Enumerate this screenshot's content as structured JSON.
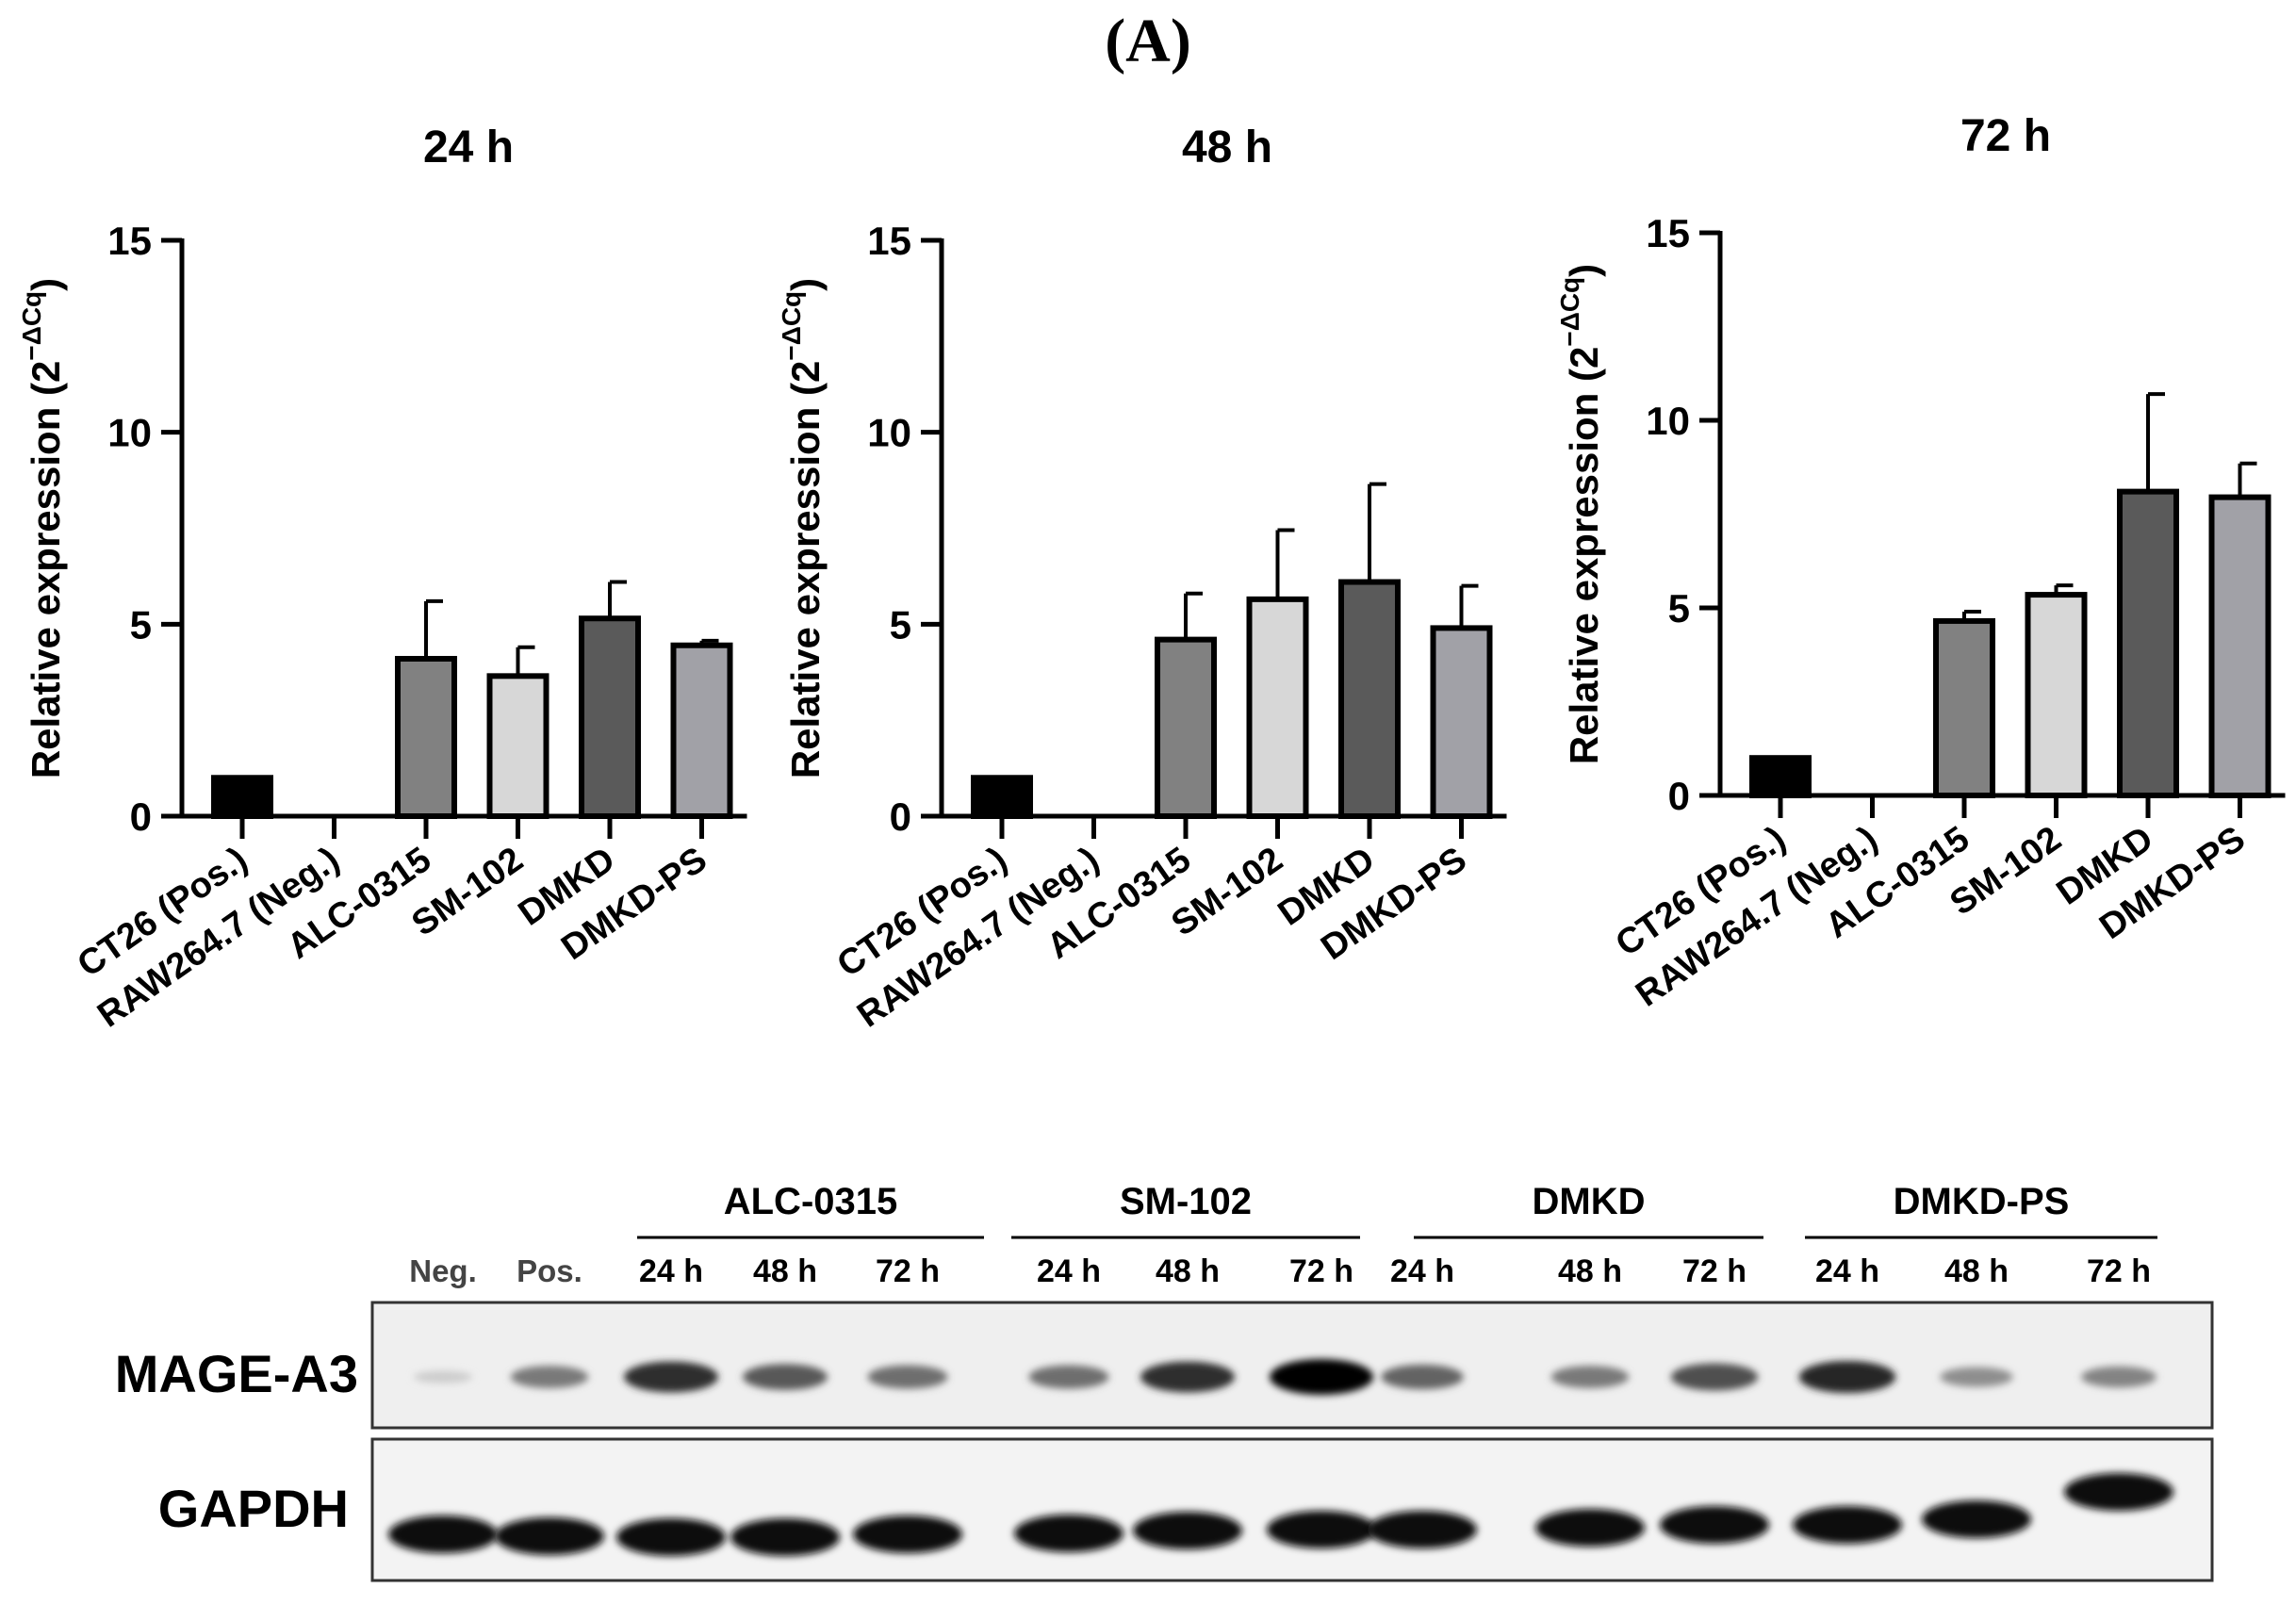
{
  "panel_label": "(A)",
  "chart_data": [
    {
      "type": "bar",
      "title": "24 h",
      "ylabel": "Relative expression (2",
      "ylabel_exp": "−ΔCq",
      "ylabel_close": ")",
      "ylim": [
        0,
        15
      ],
      "yticks": [
        0,
        5,
        10,
        15
      ],
      "categories": [
        "CT26 (Pos.)",
        "RAW264.7 (Neg.)",
        "ALC-0315",
        "SM-102",
        "DMKD",
        "DMKD-PS"
      ],
      "values": [
        1.0,
        0.0,
        4.1,
        3.65,
        5.15,
        4.45
      ],
      "errors": [
        0,
        0,
        1.5,
        0.75,
        0.95,
        0.12
      ],
      "colors": [
        "#000000",
        "#000000",
        "#818181",
        "#d7d7d7",
        "#5a5a5a",
        "#a1a1a7"
      ]
    },
    {
      "type": "bar",
      "title": "48 h",
      "ylabel": "Relative expression (2",
      "ylabel_exp": "−ΔCq",
      "ylabel_close": ")",
      "ylim": [
        0,
        15
      ],
      "yticks": [
        0,
        5,
        10,
        15
      ],
      "categories": [
        "CT26 (Pos.)",
        "RAW264.7 (Neg.)",
        "ALC-0315",
        "SM-102",
        "DMKD",
        "DMKD-PS"
      ],
      "values": [
        1.0,
        0.0,
        4.6,
        5.65,
        6.1,
        4.9
      ],
      "errors": [
        0,
        0,
        1.2,
        1.8,
        2.55,
        1.1
      ],
      "colors": [
        "#000000",
        "#000000",
        "#818181",
        "#d7d7d7",
        "#5a5a5a",
        "#a1a1a7"
      ]
    },
    {
      "type": "bar",
      "title": "72 h",
      "ylabel": "Relative expression (2",
      "ylabel_exp": "−ΔCq",
      "ylabel_close": ")",
      "ylim": [
        0,
        15
      ],
      "yticks": [
        0,
        5,
        10,
        15
      ],
      "categories": [
        "CT26 (Pos.)",
        "RAW264.7 (Neg.)",
        "ALC-0315",
        "SM-102",
        "DMKD",
        "DMKD-PS"
      ],
      "values": [
        1.0,
        0.0,
        4.65,
        5.35,
        8.1,
        7.95
      ],
      "errors": [
        0,
        0,
        0.25,
        0.25,
        2.6,
        0.9
      ],
      "colors": [
        "#000000",
        "#000000",
        "#818181",
        "#d7d7d7",
        "#5a5a5a",
        "#a1a1a7"
      ]
    }
  ],
  "blot": {
    "groups": [
      "ALC-0315",
      "SM-102",
      "DMKD",
      "DMKD-PS"
    ],
    "lanes": [
      "Neg.",
      "Pos.",
      "24 h",
      "48 h",
      "72 h",
      "24 h",
      "48 h",
      "72 h",
      "24 h",
      "48 h",
      "72 h",
      "24 h",
      "48 h",
      "72 h"
    ],
    "proteins": [
      "MAGE-A3",
      "GAPDH"
    ],
    "mage_a3_intensity": [
      0.05,
      0.45,
      0.8,
      0.6,
      0.5,
      0.5,
      0.8,
      1.0,
      0.55,
      0.45,
      0.65,
      0.85,
      0.35,
      0.4
    ],
    "gapdh_intensity": [
      1,
      1,
      1,
      1,
      1,
      1,
      1,
      1,
      1,
      1,
      1,
      1,
      1,
      1
    ]
  }
}
